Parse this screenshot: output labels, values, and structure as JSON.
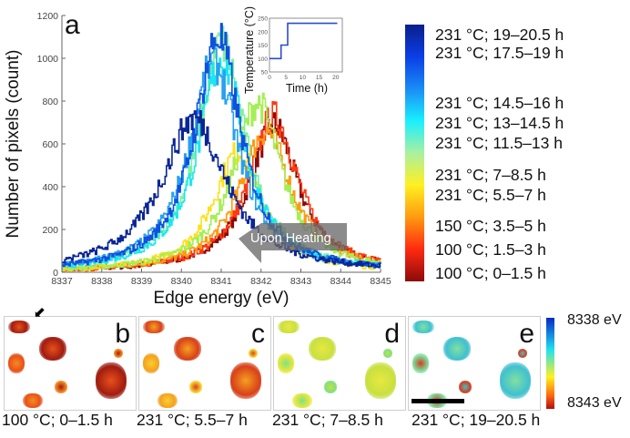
{
  "figure": {
    "panel_a_letter": "a",
    "panel_letters": [
      "b",
      "c",
      "d",
      "e"
    ]
  },
  "chart_data": [
    {
      "type": "line",
      "panel": "a",
      "xlabel": "Edge energy (eV)",
      "ylabel": "Number of pixels (count)",
      "xlim": [
        8337,
        8345
      ],
      "ylim": [
        0,
        1200
      ],
      "xticks": [
        "8337",
        "8338",
        "8339",
        "8340",
        "8341",
        "8342",
        "8343",
        "8344",
        "8345"
      ],
      "yticks": [
        "0",
        "200",
        "400",
        "600",
        "800",
        "1000",
        "1200"
      ],
      "annotation": "Upon Heating",
      "series": [
        {
          "name": "100 °C; 0–1.5 h",
          "color": "#8b0a0a",
          "peak_x": 8342.3,
          "peak_y": 690,
          "width": 0.95
        },
        {
          "name": "100 °C; 1.5–3 h",
          "color": "#ff3a10",
          "peak_x": 8342.3,
          "peak_y": 730,
          "width": 0.95
        },
        {
          "name": "150 °C; 3.5–5 h",
          "color": "#ff9a10",
          "peak_x": 8342.1,
          "peak_y": 660,
          "width": 1.0
        },
        {
          "name": "231 °C; 5.5–7 h",
          "color": "#ffe01a",
          "peak_x": 8341.4,
          "peak_y": 560,
          "width": 0.95
        },
        {
          "name": "231 °C; 7–8.5 h",
          "color": "#a6ee55",
          "peak_x": 8341.9,
          "peak_y": 790,
          "width": 0.95
        },
        {
          "name": "231 °C; 11.5–13 h",
          "color": "#7ff0a0",
          "peak_x": 8341.0,
          "peak_y": 1070,
          "width": 0.9
        },
        {
          "name": "231 °C; 13–14.5 h",
          "color": "#18e8f0",
          "peak_x": 8341.0,
          "peak_y": 1000,
          "width": 0.9
        },
        {
          "name": "231 °C; 14.5–16 h",
          "color": "#2aa0f0",
          "peak_x": 8340.8,
          "peak_y": 980,
          "width": 0.95
        },
        {
          "name": "231 °C; 17.5–19 h",
          "color": "#0f50e0",
          "peak_x": 8340.9,
          "peak_y": 1100,
          "width": 0.9
        },
        {
          "name": "231 °C; 19–20.5 h",
          "color": "#0a2596",
          "peak_x": 8340.3,
          "peak_y": 720,
          "width": 1.25
        }
      ]
    },
    {
      "type": "line",
      "panel": "inset",
      "xlabel": "Time (h)",
      "ylabel": "Temperature (°C)",
      "xlim": [
        0,
        22
      ],
      "ylim": [
        50,
        250
      ],
      "xticks": [
        "0",
        "5",
        "10",
        "15",
        "20"
      ],
      "yticks": [
        "50",
        "100",
        "150",
        "200",
        "250"
      ],
      "series": [
        {
          "name": "temperature",
          "color": "#2a4bd0",
          "x": [
            0,
            3.5,
            3.5,
            5.5,
            5.5,
            20.5
          ],
          "y": [
            100,
            100,
            150,
            150,
            231,
            231
          ]
        }
      ]
    }
  ],
  "legend": {
    "colorbar_stops": [
      "#0a1f8a",
      "#0a3ee6",
      "#1a8cf5",
      "#19f0ff",
      "#aaf0a0",
      "#fff021",
      "#ff9a10",
      "#ff2a10",
      "#8b0a0a"
    ],
    "entries": [
      "231 °C; 19–20.5 h",
      "231 °C; 17.5–19 h",
      "231 °C; 14.5–16 h",
      "231 °C; 13–14.5 h",
      "231 °C; 11.5–13 h",
      "231 °C; 7–8.5 h",
      "231 °C; 5.5–7 h",
      "150 °C; 3.5–5 h",
      "100 °C; 1.5–3 h",
      "100 °C; 0–1.5 h"
    ]
  },
  "maps": {
    "captions": [
      "100 °C; 0–1.5 h",
      "231 °C; 5.5–7 h",
      "231 °C; 7–8.5 h",
      "231 °C; 19–20.5 h"
    ],
    "colorbar_top_label": "8338 eV",
    "colorbar_bottom_label": "8343 eV",
    "palettes": [
      [
        "#a01c10",
        "#e8501a",
        "#f58a20"
      ],
      [
        "#d8401a",
        "#f5a020",
        "#f8d030"
      ],
      [
        "#c8e040",
        "#e8e840",
        "#80e080"
      ],
      [
        "#40c0d0",
        "#80e0a0",
        "#d04020"
      ]
    ]
  }
}
